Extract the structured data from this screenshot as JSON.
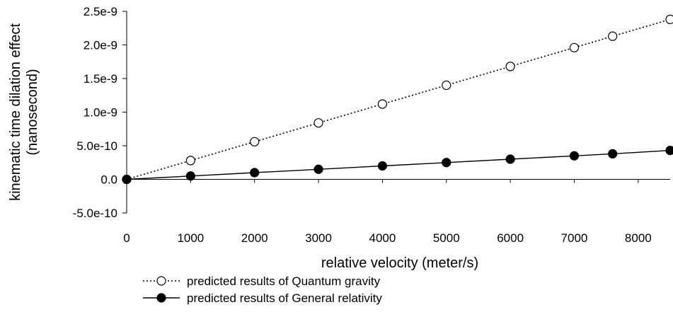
{
  "chart_data": {
    "type": "scatter",
    "title": "",
    "xlabel": "relative velocity (meter/s)",
    "ylabel_lines": [
      "kinematic time dilation effect",
      "(nanosecond)"
    ],
    "xlim": [
      0,
      8500
    ],
    "ylim": [
      -5e-10,
      2.5e-09
    ],
    "x_ticks": [
      {
        "value": 0,
        "label": "0"
      },
      {
        "value": 1000,
        "label": "1000"
      },
      {
        "value": 2000,
        "label": "2000"
      },
      {
        "value": 3000,
        "label": "3000"
      },
      {
        "value": 4000,
        "label": "4000"
      },
      {
        "value": 5000,
        "label": "5000"
      },
      {
        "value": 6000,
        "label": "6000"
      },
      {
        "value": 7000,
        "label": "7000"
      },
      {
        "value": 8000,
        "label": "8000"
      }
    ],
    "y_ticks": [
      {
        "value": -5e-10,
        "label": "-5.0e-10"
      },
      {
        "value": 0,
        "label": "0.0"
      },
      {
        "value": 5e-10,
        "label": "5.0e-10"
      },
      {
        "value": 1e-09,
        "label": "1.0e-9"
      },
      {
        "value": 1.5e-09,
        "label": "1.5e-9"
      },
      {
        "value": 2e-09,
        "label": "2.0e-9"
      },
      {
        "value": 2.5e-09,
        "label": "2.5e-9"
      }
    ],
    "grid": false,
    "legend_position": "bottom-left",
    "series": [
      {
        "name": "predicted results of Quantum gravity",
        "marker": "open-circle",
        "line_style": "dotted",
        "color": "#000000",
        "x": [
          0,
          1000,
          2000,
          3000,
          4000,
          5000,
          6000,
          7000,
          7600,
          8500
        ],
        "y": [
          0,
          2.8e-10,
          5.6e-10,
          8.4e-10,
          1.12e-09,
          1.4e-09,
          1.68e-09,
          1.96e-09,
          2.13e-09,
          2.38e-09
        ]
      },
      {
        "name": "predicted results of General relativity",
        "marker": "filled-circle",
        "line_style": "solid",
        "color": "#000000",
        "x": [
          0,
          1000,
          2000,
          3000,
          4000,
          5000,
          6000,
          7000,
          7600,
          8500
        ],
        "y": [
          0,
          5e-11,
          1e-10,
          1.5e-10,
          2e-10,
          2.5e-10,
          3e-10,
          3.5e-10,
          3.8e-10,
          4.3e-10
        ]
      }
    ]
  }
}
